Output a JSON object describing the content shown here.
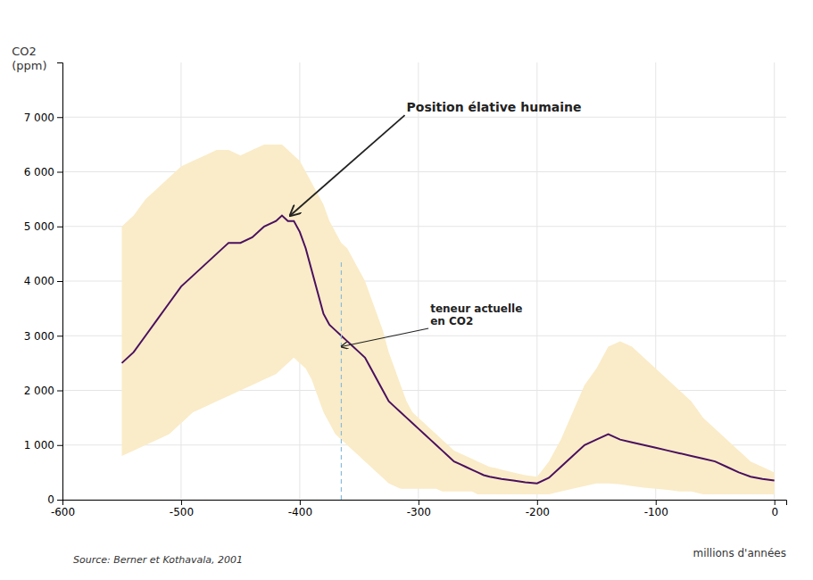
{
  "chart_data": {
    "type": "line",
    "ylabel": "CO2\n(ppm)",
    "xlabel": "millions d'années",
    "source": "Source: Berner et Kothavala, 2001",
    "annotations": [
      {
        "text": "Position élative humaine",
        "x": -408,
        "y": 5200,
        "text_x": -310,
        "text_y": 7100
      },
      {
        "text": "teneur actuelle\nen CO2",
        "x": -365,
        "y": 2800,
        "text_x": -290,
        "text_y": 3200
      }
    ],
    "grid": true,
    "xlim": [
      -600,
      10
    ],
    "ylim": [
      0,
      8000
    ],
    "xticks": [
      -600,
      -500,
      -400,
      -300,
      -200,
      -100,
      0
    ],
    "yticks": [
      0,
      {
        "value": 1000,
        "label": "1 000"
      },
      {
        "value": 2000,
        "label": "2 000"
      },
      {
        "value": 3000,
        "label": "3 000"
      },
      {
        "value": 4000,
        "label": "4 000"
      },
      {
        "value": 5000,
        "label": "5 000"
      },
      {
        "value": 6000,
        "label": "6 000"
      },
      {
        "value": 7000,
        "label": "7 000"
      }
    ],
    "x": [
      -550,
      -540,
      -530,
      -520,
      -510,
      -500,
      -490,
      -480,
      -470,
      -460,
      -450,
      -440,
      -430,
      -420,
      -415,
      -410,
      -405,
      -400,
      -395,
      -390,
      -385,
      -380,
      -375,
      -370,
      -365,
      -360,
      -355,
      -350,
      -345,
      -340,
      -335,
      -330,
      -325,
      -320,
      -315,
      -310,
      -305,
      -300,
      -295,
      -290,
      -285,
      -280,
      -275,
      -270,
      -265,
      -260,
      -255,
      -250,
      -245,
      -240,
      -235,
      -230,
      -220,
      -210,
      -200,
      -190,
      -180,
      -170,
      -160,
      -150,
      -140,
      -130,
      -120,
      -110,
      -100,
      -90,
      -80,
      -70,
      -60,
      -50,
      -40,
      -30,
      -20,
      -10,
      0
    ],
    "series": [
      {
        "type": "area",
        "color": "#faecc8",
        "lower": [
          800,
          900,
          1000,
          1100,
          1200,
          1400,
          1600,
          1700,
          1800,
          1900,
          2000,
          2100,
          2200,
          2300,
          2400,
          2500,
          2600,
          2500,
          2400,
          2200,
          1900,
          1600,
          1400,
          1200,
          1100,
          1000,
          900,
          800,
          700,
          600,
          500,
          400,
          300,
          250,
          200,
          200,
          200,
          200,
          200,
          200,
          200,
          150,
          150,
          150,
          150,
          150,
          150,
          100,
          100,
          100,
          100,
          100,
          100,
          100,
          100,
          100,
          150,
          200,
          250,
          300,
          300,
          280,
          250,
          220,
          200,
          180,
          150,
          150,
          100,
          100,
          100,
          100,
          100,
          100,
          100
        ],
        "upper": [
          5000,
          5200,
          5500,
          5700,
          5900,
          6100,
          6200,
          6300,
          6400,
          6400,
          6300,
          6400,
          6500,
          6500,
          6500,
          6400,
          6300,
          6200,
          6000,
          5800,
          5600,
          5400,
          5100,
          4900,
          4700,
          4600,
          4400,
          4200,
          4000,
          3700,
          3400,
          3100,
          2700,
          2400,
          2100,
          1800,
          1600,
          1500,
          1400,
          1300,
          1200,
          1100,
          1000,
          900,
          850,
          800,
          750,
          700,
          650,
          600,
          580,
          550,
          500,
          450,
          420,
          700,
          1100,
          1600,
          2100,
          2400,
          2800,
          2900,
          2800,
          2600,
          2400,
          2200,
          2000,
          1800,
          1500,
          1300,
          1100,
          900,
          700,
          600,
          500
        ]
      },
      {
        "type": "line",
        "color": "#4a1060",
        "values": [
          2500,
          2700,
          3000,
          3300,
          3600,
          3900,
          4100,
          4300,
          4500,
          4700,
          4700,
          4800,
          5000,
          5100,
          5200,
          5100,
          5100,
          4900,
          4600,
          4200,
          3800,
          3400,
          3200,
          3100,
          3000,
          2900,
          2800,
          2700,
          2600,
          2400,
          2200,
          2000,
          1800,
          1700,
          1600,
          1500,
          1400,
          1300,
          1200,
          1100,
          1000,
          900,
          800,
          700,
          650,
          600,
          550,
          500,
          450,
          420,
          400,
          380,
          350,
          320,
          300,
          400,
          600,
          800,
          1000,
          1100,
          1200,
          1100,
          1050,
          1000,
          950,
          900,
          850,
          800,
          750,
          700,
          600,
          500,
          420,
          380,
          350
        ]
      }
    ]
  }
}
